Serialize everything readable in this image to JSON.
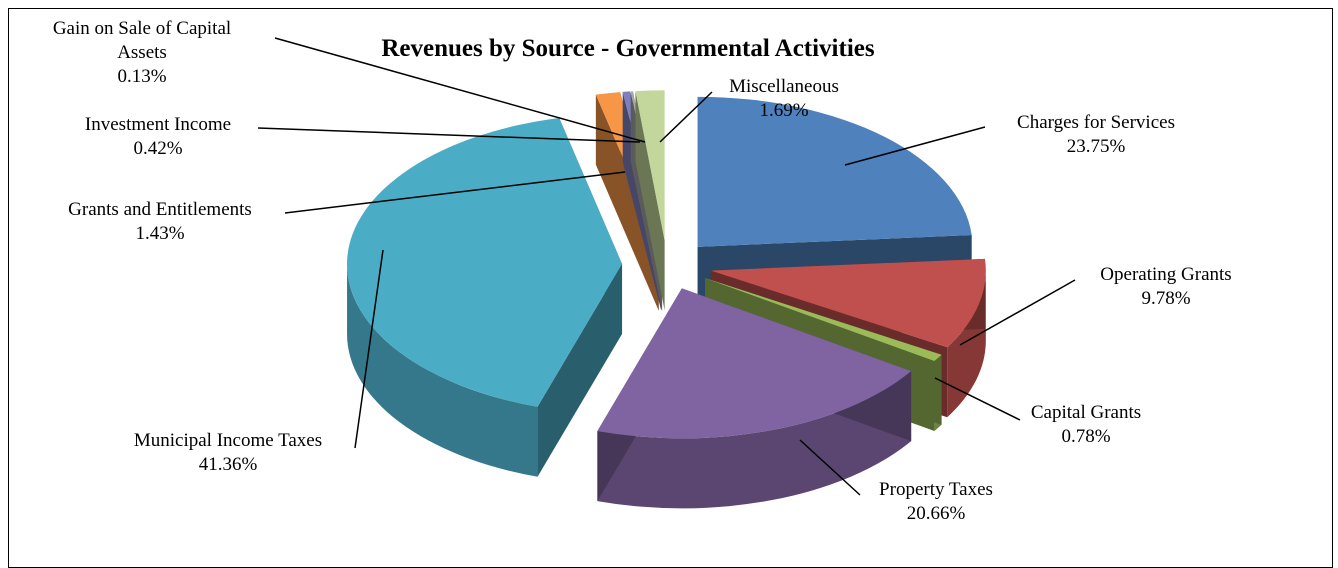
{
  "chart_data": {
    "type": "pie",
    "style": "3d-exploded",
    "title": "Revenues by Source - Governmental Activities",
    "slices": [
      {
        "name": "Charges for Services",
        "value": 23.75,
        "label": "23.75%",
        "color": "#4f81bd"
      },
      {
        "name": "Operating Grants",
        "value": 9.78,
        "label": "9.78%",
        "color": "#c0504d"
      },
      {
        "name": "Capital Grants",
        "value": 0.78,
        "label": "0.78%",
        "color": "#9bbb59"
      },
      {
        "name": "Property Taxes",
        "value": 20.66,
        "label": "20.66%",
        "color": "#8064a2"
      },
      {
        "name": "Municipal Income Taxes",
        "value": 41.36,
        "label": "41.36%",
        "color": "#4bacc6"
      },
      {
        "name": "Grants and Entitlements",
        "value": 1.43,
        "label": "1.43%",
        "color": "#f79646"
      },
      {
        "name": "Investment Income",
        "value": 0.42,
        "label": "0.42%",
        "color": "#7f7fbf"
      },
      {
        "name": "Gain on Sale of Capital Assets",
        "value": 0.13,
        "label": "0.13%",
        "color": "#a6a6a6"
      },
      {
        "name": "Miscellaneous",
        "value": 1.69,
        "label": "1.69%",
        "color": "#c3d69b"
      }
    ],
    "legend": "none"
  }
}
